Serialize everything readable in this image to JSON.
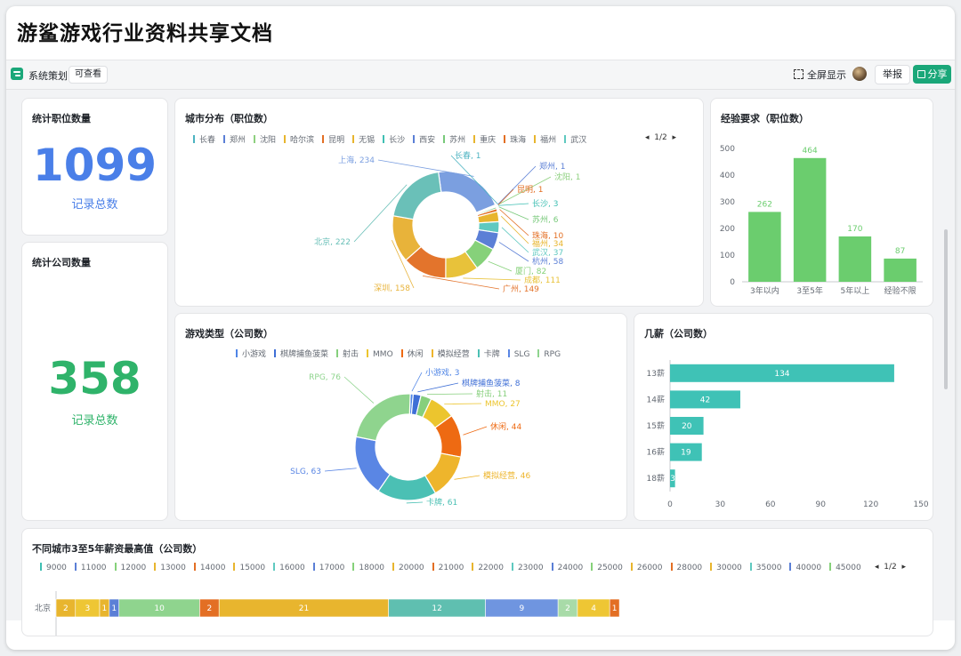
{
  "document": {
    "title": "游鲨游戏行业资料共享文档"
  },
  "toolbar": {
    "name": "系统策划",
    "permission": "可查看",
    "fullscreen": "全屏显示",
    "report": "举报",
    "share": "分享"
  },
  "stat_jobs": {
    "title": "统计职位数量",
    "value": "1099",
    "label": "记录总数",
    "color": "#4a7fe8"
  },
  "stat_companies": {
    "title": "统计公司数量",
    "value": "358",
    "label": "记录总数",
    "color": "#2fb36a"
  },
  "city_chart": {
    "title": "城市分布（职位数）",
    "page": "1/2"
  },
  "exp_chart": {
    "title": "经验要求（职位数）"
  },
  "genre_chart": {
    "title": "游戏类型（公司数）"
  },
  "salary_chart": {
    "title": "几薪（公司数）"
  },
  "bottom_chart": {
    "title": "不同城市3至5年薪资最高值（公司数）",
    "page": "1/2"
  },
  "chart_data": [
    {
      "type": "pie",
      "title": "城市分布（职位数）",
      "legend": [
        "长春",
        "郑州",
        "沈阳",
        "哈尔滨",
        "昆明",
        "无锡",
        "长沙",
        "西安",
        "苏州",
        "重庆",
        "珠海",
        "福州",
        "武汉"
      ],
      "slices": [
        {
          "name": "上海",
          "value": 234,
          "color": "#7b9fe0"
        },
        {
          "name": "长春",
          "value": 1,
          "color": "#4cb3c1"
        },
        {
          "name": "郑州",
          "value": 1,
          "color": "#5b7fd6"
        },
        {
          "name": "沈阳",
          "value": 1,
          "color": "#8ed07f"
        },
        {
          "name": "昆明",
          "value": 1,
          "color": "#e36f24"
        },
        {
          "name": "长沙",
          "value": 3,
          "color": "#3fbfb3"
        },
        {
          "name": "苏州",
          "value": 6,
          "color": "#78c97a"
        },
        {
          "name": "珠海",
          "value": 10,
          "color": "#e36f24"
        },
        {
          "name": "福州",
          "value": 34,
          "color": "#e8b52e"
        },
        {
          "name": "武汉",
          "value": 37,
          "color": "#5fc9c0"
        },
        {
          "name": "杭州",
          "value": 58,
          "color": "#5b7fd6"
        },
        {
          "name": "厦门",
          "value": 82,
          "color": "#86d17a"
        },
        {
          "name": "成都",
          "value": 111,
          "color": "#e8c23a"
        },
        {
          "name": "广州",
          "value": 149,
          "color": "#e3742c"
        },
        {
          "name": "深圳",
          "value": 158,
          "color": "#e8b33a"
        },
        {
          "name": "北京",
          "value": 222,
          "color": "#6ac0b8"
        }
      ]
    },
    {
      "type": "bar",
      "title": "经验要求（职位数）",
      "categories": [
        "3年以内",
        "3至5年",
        "5年以上",
        "经验不限"
      ],
      "values": [
        262,
        464,
        170,
        87
      ],
      "ylim": [
        0,
        500
      ],
      "yticks": [
        0,
        100,
        200,
        300,
        400,
        500
      ],
      "color": "#6bcd6e"
    },
    {
      "type": "pie",
      "title": "游戏类型（公司数）",
      "legend": [
        "小游戏",
        "棋牌捕鱼菠菜",
        "射击",
        "MMO",
        "休闲",
        "模拟经营",
        "卡牌",
        "SLG",
        "RPG"
      ],
      "slices": [
        {
          "name": "小游戏",
          "value": 3,
          "color": "#4f85e6"
        },
        {
          "name": "棋牌捕鱼菠菜",
          "value": 8,
          "color": "#3f6fd6"
        },
        {
          "name": "射击",
          "value": 11,
          "color": "#86cf7c"
        },
        {
          "name": "MMO",
          "value": 27,
          "color": "#ecc52e"
        },
        {
          "name": "休闲",
          "value": 44,
          "color": "#ee6a12"
        },
        {
          "name": "模拟经营",
          "value": 46,
          "color": "#eeb52c"
        },
        {
          "name": "卡牌",
          "value": 61,
          "color": "#4bc0b4"
        },
        {
          "name": "SLG",
          "value": 63,
          "color": "#5a86e4"
        },
        {
          "name": "RPG",
          "value": 76,
          "color": "#8fd48e"
        }
      ]
    },
    {
      "type": "bar",
      "title": "几薪（公司数）",
      "orientation": "horizontal",
      "categories": [
        "13薪",
        "14薪",
        "15薪",
        "16薪",
        "18薪"
      ],
      "values": [
        134,
        42,
        20,
        19,
        3
      ],
      "xlim": [
        0,
        150
      ],
      "xticks": [
        0,
        30,
        60,
        90,
        120,
        150
      ],
      "color": "#3fc2b6"
    },
    {
      "type": "bar",
      "title": "不同城市3至5年薪资最高值（公司数）",
      "orientation": "horizontal-stacked",
      "legend": [
        "9000",
        "11000",
        "12000",
        "13000",
        "14000",
        "15000",
        "16000",
        "17000",
        "18000",
        "20000",
        "21000",
        "22000",
        "23000",
        "24000",
        "25000",
        "26000",
        "28000",
        "30000",
        "35000",
        "40000",
        "45000"
      ],
      "categories": [
        "北京"
      ],
      "segments": [
        {
          "value": 2,
          "color": "#e8b52e"
        },
        {
          "value": 3,
          "color": "#eec634"
        },
        {
          "value": 1,
          "color": "#e8b52e"
        },
        {
          "value": 1,
          "color": "#5b7fd6"
        },
        {
          "value": 10,
          "color": "#8fd48e"
        },
        {
          "value": 2,
          "color": "#e36f24"
        },
        {
          "value": 21,
          "color": "#e8b52e"
        },
        {
          "value": 12,
          "color": "#5fbfb0"
        },
        {
          "value": 9,
          "color": "#6f95e0"
        },
        {
          "value": 2,
          "color": "#a8dba8"
        },
        {
          "value": 4,
          "color": "#eec634"
        },
        {
          "value": 1,
          "color": "#e36f24"
        }
      ]
    }
  ],
  "colors": {
    "accent": "#1aa779"
  }
}
